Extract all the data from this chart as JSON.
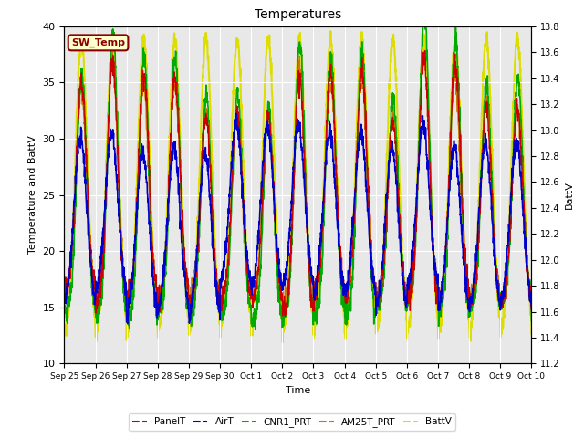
{
  "title": "Temperatures",
  "xlabel": "Time",
  "ylabel_left": "Temperature and BattV",
  "ylabel_right": "BattV",
  "ylim_left": [
    10,
    40
  ],
  "ylim_right": [
    11.2,
    13.8
  ],
  "bg_color": "#e8e8e8",
  "fig_color": "#ffffff",
  "grid_color": "#ffffff",
  "annotation_text": "SW_Temp",
  "annotation_color": "#8B0000",
  "annotation_bg": "#ffffcc",
  "series": {
    "PanelT": {
      "color": "#cc0000",
      "lw": 1.0
    },
    "AirT": {
      "color": "#0000cc",
      "lw": 1.2
    },
    "CNR1_PRT": {
      "color": "#00aa00",
      "lw": 1.2
    },
    "AM25T_PRT": {
      "color": "#cc7700",
      "lw": 1.0
    },
    "BattV": {
      "color": "#dddd00",
      "lw": 1.5
    }
  },
  "xtick_labels": [
    "Sep 25",
    "Sep 26",
    "Sep 27",
    "Sep 28",
    "Sep 29",
    "Sep 30",
    "Oct 1",
    "Oct 2",
    "Oct 3",
    "Oct 4",
    "Oct 5",
    "Oct 6",
    "Oct 7",
    "Oct 8",
    "Oct 9",
    "Oct 10"
  ],
  "yticks_left": [
    10,
    15,
    20,
    25,
    30,
    35,
    40
  ],
  "yticks_right": [
    11.2,
    11.4,
    11.6,
    11.8,
    12.0,
    12.2,
    12.4,
    12.6,
    12.8,
    13.0,
    13.2,
    13.4,
    13.6,
    13.8
  ],
  "n_days": 15,
  "pts_per_day": 144
}
